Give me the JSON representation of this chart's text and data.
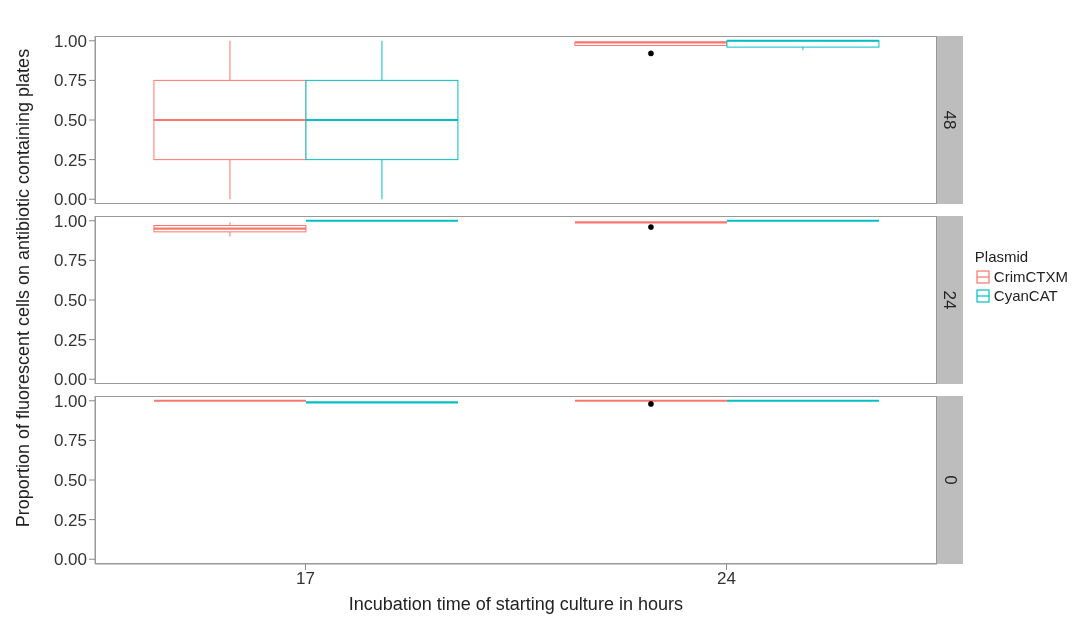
{
  "chart_data": [
    {
      "type": "box",
      "title": "48",
      "categories": [
        "17",
        "24"
      ],
      "ylim": [
        -0.03,
        1.03
      ],
      "yticks": [
        {
          "value": 0,
          "label": "0.00"
        },
        {
          "value": 0.25,
          "label": "0.25"
        },
        {
          "value": 0.5,
          "label": "0.50"
        },
        {
          "value": 0.75,
          "label": "0.75"
        },
        {
          "value": 1,
          "label": "1.00"
        }
      ],
      "tick_labels": "y",
      "legend": "right",
      "legend_title": "Plasmid",
      "series": [
        {
          "name": "CrimCTXM",
          "color": "#f8766d",
          "boxes": [
            {
              "low": 0,
              "q1": 0.25,
              "median": 0.5,
              "q3": 0.75,
              "high": 1
            },
            {
              "low": 0.97,
              "q1": 0.97,
              "median": 0.99,
              "q3": 0.99,
              "high": 0.99,
              "outliers": [
                0.92
              ]
            }
          ]
        },
        {
          "name": "CyanCAT",
          "color": "#00bfc4",
          "boxes": [
            {
              "low": 0,
              "q1": 0.25,
              "median": 0.5,
              "q3": 0.75,
              "high": 1
            },
            {
              "low": 0.94,
              "q1": 0.96,
              "median": 1,
              "q3": 1,
              "high": 1
            }
          ]
        }
      ]
    },
    {
      "type": "box",
      "title": "24",
      "categories": [
        "17",
        "24"
      ],
      "ylim": [
        -0.03,
        1.03
      ],
      "yticks": [
        {
          "value": 0,
          "label": "0.00"
        },
        {
          "value": 0.25,
          "label": "0.25"
        },
        {
          "value": 0.5,
          "label": "0.50"
        },
        {
          "value": 0.75,
          "label": "0.75"
        },
        {
          "value": 1,
          "label": "1.00"
        }
      ],
      "tick_labels": "y",
      "ylabel": "Proportion of fluorescent cells on antibiotic containing plates",
      "series": [
        {
          "color": "#f8766d",
          "boxes": [
            {
              "low": 0.9,
              "q1": 0.93,
              "median": 0.95,
              "q3": 0.97,
              "high": 0.99
            },
            {
              "low": 0.99,
              "q1": 0.99,
              "median": 0.99,
              "q3": 0.99,
              "high": 0.99,
              "outliers": [
                0.96
              ]
            }
          ]
        },
        {
          "color": "#00bfc4",
          "boxes": [
            {
              "low": 1,
              "q1": 1,
              "median": 1,
              "q3": 1,
              "high": 1
            },
            {
              "low": 1,
              "q1": 1,
              "median": 1,
              "q3": 1,
              "high": 1
            }
          ]
        }
      ]
    },
    {
      "type": "box",
      "title": "0",
      "categories": [
        "17",
        "24"
      ],
      "ylim": [
        -0.03,
        1.03
      ],
      "yticks": [
        {
          "value": 0,
          "label": "0.00"
        },
        {
          "value": 0.25,
          "label": "0.25"
        },
        {
          "value": 0.5,
          "label": "0.50"
        },
        {
          "value": 0.75,
          "label": "0.75"
        },
        {
          "value": 1,
          "label": "1.00"
        }
      ],
      "xlabel": "Incubation time of starting culture in hours",
      "series": [
        {
          "color": "#f8766d",
          "boxes": [
            {
              "low": 1,
              "q1": 1,
              "median": 1,
              "q3": 1,
              "high": 1
            },
            {
              "low": 1,
              "q1": 1,
              "median": 1,
              "q3": 1,
              "high": 1,
              "outliers": [
                0.98
              ]
            }
          ]
        },
        {
          "color": "#00bfc4",
          "boxes": [
            {
              "low": 0.99,
              "q1": 0.99,
              "median": 0.99,
              "q3": 0.99,
              "high": 0.99
            },
            {
              "low": 1,
              "q1": 1,
              "median": 1,
              "q3": 1,
              "high": 1
            }
          ]
        }
      ]
    }
  ]
}
